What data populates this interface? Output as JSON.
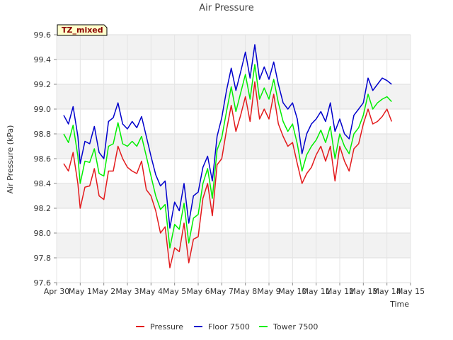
{
  "chart_data": {
    "type": "line",
    "title": "Air Pressure",
    "xlabel": "Time",
    "ylabel": "Air Pressure (kPa)",
    "badge": "TZ_mixed",
    "ylim": [
      97.6,
      99.6
    ],
    "yticks": [
      97.6,
      97.8,
      98.0,
      98.2,
      98.4,
      98.6,
      98.8,
      99.0,
      99.2,
      99.4,
      99.6
    ],
    "xlim": [
      0,
      15
    ],
    "xticks": [
      "Apr 30",
      "May 1",
      "May 2",
      "May 3",
      "May 4",
      "May 5",
      "May 6",
      "May 7",
      "May 8",
      "May 9",
      "May 10",
      "May 11",
      "May 12",
      "May 13",
      "May 14",
      "May 15"
    ],
    "grid": true,
    "legend": "bottom-center",
    "x": [
      0.3,
      0.5,
      0.7,
      0.9,
      1.0,
      1.2,
      1.4,
      1.6,
      1.8,
      2.0,
      2.2,
      2.4,
      2.6,
      2.8,
      3.0,
      3.2,
      3.4,
      3.6,
      3.8,
      4.0,
      4.2,
      4.4,
      4.6,
      4.8,
      5.0,
      5.2,
      5.4,
      5.6,
      5.8,
      6.0,
      6.2,
      6.4,
      6.6,
      6.8,
      7.0,
      7.2,
      7.4,
      7.6,
      7.8,
      8.0,
      8.2,
      8.4,
      8.6,
      8.8,
      9.0,
      9.2,
      9.4,
      9.6,
      9.8,
      10.0,
      10.2,
      10.4,
      10.6,
      10.8,
      11.0,
      11.2,
      11.4,
      11.6,
      11.8,
      12.0,
      12.2,
      12.4,
      12.6,
      12.8,
      13.0,
      13.2,
      13.4,
      13.6,
      13.8,
      14.0,
      14.2
    ],
    "series": [
      {
        "name": "Pressure",
        "color": "#e31a1c",
        "values": [
          98.56,
          98.5,
          98.65,
          98.4,
          98.2,
          98.37,
          98.38,
          98.52,
          98.3,
          98.27,
          98.5,
          98.5,
          98.7,
          98.6,
          98.53,
          98.5,
          98.48,
          98.58,
          98.35,
          98.3,
          98.18,
          98.0,
          98.05,
          97.72,
          97.88,
          97.85,
          98.08,
          97.76,
          97.95,
          97.97,
          98.28,
          98.4,
          98.14,
          98.55,
          98.6,
          98.83,
          99.03,
          98.82,
          98.95,
          99.1,
          98.9,
          99.22,
          98.92,
          99.0,
          98.92,
          99.12,
          98.88,
          98.78,
          98.7,
          98.73,
          98.56,
          98.4,
          98.48,
          98.53,
          98.63,
          98.7,
          98.58,
          98.7,
          98.42,
          98.7,
          98.58,
          98.5,
          98.68,
          98.72,
          98.88,
          99.0,
          98.88,
          98.9,
          98.94,
          99.0,
          98.9
        ]
      },
      {
        "name": "Floor 7500",
        "color": "#0000cc",
        "values": [
          98.95,
          98.88,
          99.02,
          98.78,
          98.56,
          98.74,
          98.72,
          98.86,
          98.65,
          98.6,
          98.9,
          98.93,
          99.05,
          98.88,
          98.84,
          98.9,
          98.85,
          98.94,
          98.78,
          98.62,
          98.47,
          98.38,
          98.42,
          98.04,
          98.25,
          98.18,
          98.4,
          98.08,
          98.3,
          98.33,
          98.53,
          98.62,
          98.42,
          98.78,
          98.93,
          99.15,
          99.33,
          99.15,
          99.3,
          99.46,
          99.25,
          99.52,
          99.24,
          99.34,
          99.24,
          99.38,
          99.2,
          99.05,
          99.0,
          99.05,
          98.92,
          98.64,
          98.8,
          98.88,
          98.92,
          98.98,
          98.9,
          99.05,
          98.82,
          98.92,
          98.8,
          98.76,
          98.95,
          99.0,
          99.05,
          99.25,
          99.15,
          99.2,
          99.25,
          99.23,
          99.2
        ]
      },
      {
        "name": "Tower 7500",
        "color": "#00ee00",
        "values": [
          98.8,
          98.73,
          98.87,
          98.62,
          98.4,
          98.58,
          98.57,
          98.68,
          98.48,
          98.46,
          98.7,
          98.72,
          98.89,
          98.72,
          98.7,
          98.74,
          98.7,
          98.78,
          98.62,
          98.46,
          98.3,
          98.19,
          98.23,
          97.88,
          98.07,
          98.03,
          98.24,
          97.92,
          98.12,
          98.15,
          98.4,
          98.52,
          98.28,
          98.67,
          98.77,
          98.98,
          99.18,
          98.98,
          99.13,
          99.28,
          99.08,
          99.36,
          99.08,
          99.17,
          99.08,
          99.24,
          99.05,
          98.9,
          98.82,
          98.88,
          98.72,
          98.5,
          98.63,
          98.7,
          98.75,
          98.83,
          98.73,
          98.86,
          98.6,
          98.8,
          98.7,
          98.64,
          98.8,
          98.85,
          98.95,
          99.12,
          99.0,
          99.05,
          99.08,
          99.1,
          99.06
        ]
      }
    ]
  }
}
